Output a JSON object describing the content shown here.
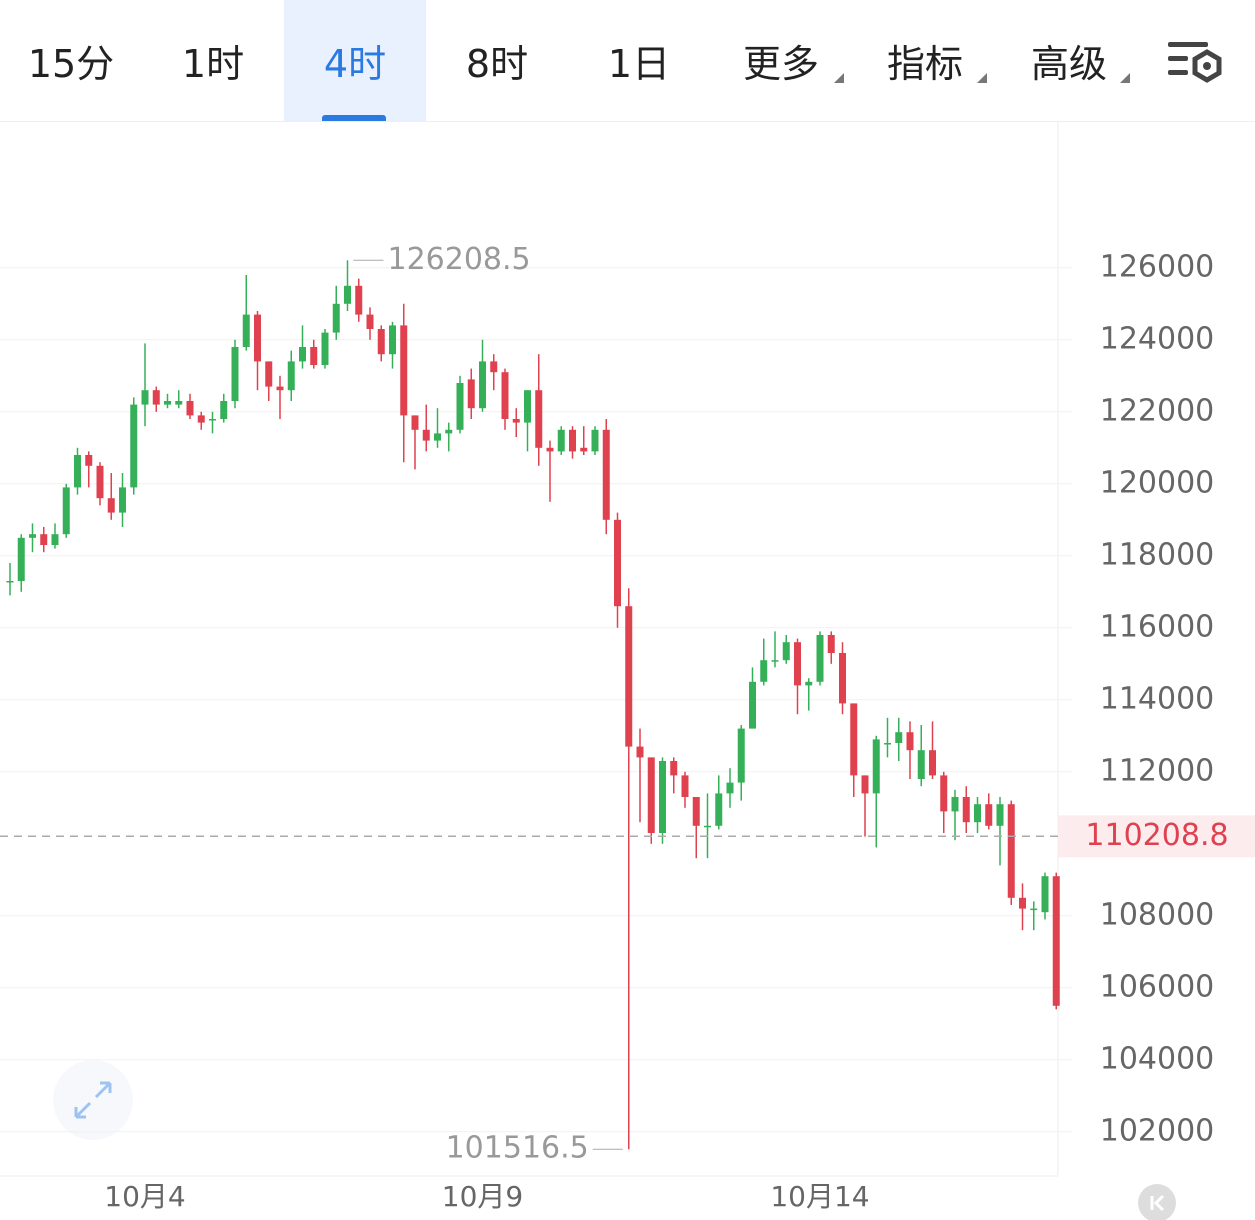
{
  "tabs": [
    "15分",
    "1时",
    "4时",
    "8时",
    "1日",
    "更多",
    "指标",
    "高级"
  ],
  "active_tab": 2,
  "chart_data": {
    "type": "candlestick",
    "categories": [
      null,
      null,
      null,
      null,
      null,
      null,
      null,
      null,
      null,
      null,
      null,
      null,
      "10月4",
      null,
      null,
      null,
      null,
      null,
      null,
      null,
      null,
      null,
      null,
      null,
      null,
      null,
      null,
      null,
      null,
      null,
      null,
      null,
      null,
      null,
      null,
      null,
      null,
      null,
      null,
      null,
      null,
      null,
      "10月9",
      null,
      null,
      null,
      null,
      null,
      null,
      null,
      null,
      null,
      null,
      null,
      null,
      null,
      null,
      null,
      null,
      null,
      null,
      null,
      null,
      null,
      null,
      null,
      null,
      null,
      null,
      null,
      null,
      null,
      "10月14",
      null,
      null,
      null,
      null,
      null,
      null,
      null,
      null,
      null,
      null,
      null,
      null,
      null,
      null,
      null,
      null,
      null,
      null,
      null,
      null,
      null
    ],
    "open": [
      117300,
      117300,
      118500,
      118600,
      118300,
      118600,
      119900,
      120800,
      120500,
      119600,
      119200,
      119900,
      122200,
      122600,
      122200,
      122200,
      122300,
      121900,
      121800,
      121800,
      122300,
      123800,
      124700,
      123400,
      122700,
      122600,
      123400,
      123800,
      123300,
      124200,
      125000,
      125500,
      124700,
      124300,
      123600,
      124400,
      121900,
      121500,
      121200,
      121400,
      121500,
      122900,
      122100,
      123400,
      123100,
      121800,
      121700,
      122600,
      121000,
      120900,
      121500,
      121000,
      120900,
      121500,
      119000,
      116600,
      112700,
      112400,
      110300,
      112300,
      111900,
      111300,
      110500,
      110500,
      111400,
      111700,
      113200,
      114500,
      115100,
      115100,
      115600,
      114400,
      114500,
      115800,
      115300,
      113900,
      111900,
      111400,
      112800,
      112800,
      113100,
      111800,
      112600,
      111900,
      110900,
      111300,
      110600,
      111100,
      110500,
      111100,
      108500,
      108200,
      108100,
      109100
    ],
    "high": [
      117800,
      118600,
      118900,
      118800,
      118900,
      120000,
      121000,
      120900,
      120600,
      120300,
      120300,
      122400,
      123900,
      122700,
      122500,
      122600,
      122500,
      122000,
      122000,
      122500,
      124000,
      125800,
      124800,
      123400,
      123000,
      123700,
      124400,
      124000,
      124300,
      125500,
      126208.5,
      125700,
      124900,
      124400,
      124500,
      125000,
      121900,
      122200,
      122100,
      121700,
      123000,
      123200,
      124000,
      123600,
      123200,
      122100,
      122600,
      123600,
      121200,
      121600,
      121600,
      121600,
      121600,
      121800,
      119200,
      117100,
      113200,
      112400,
      112400,
      112400,
      112000,
      111300,
      111400,
      111900,
      112100,
      113300,
      114900,
      115700,
      115900,
      115800,
      115700,
      114600,
      115900,
      115900,
      115600,
      113900,
      111900,
      113000,
      113500,
      113500,
      113400,
      113300,
      113400,
      112000,
      111500,
      111600,
      111300,
      111400,
      111300,
      111200,
      108900,
      108400,
      109200,
      109200
    ],
    "low": [
      116900,
      117000,
      118100,
      118100,
      118200,
      118500,
      119700,
      119900,
      119400,
      119000,
      118800,
      119700,
      121600,
      122000,
      122100,
      122100,
      121800,
      121500,
      121400,
      121700,
      122100,
      123700,
      122600,
      122300,
      121800,
      122300,
      123200,
      123200,
      123200,
      124000,
      124800,
      124500,
      124000,
      123400,
      123200,
      120600,
      120400,
      120900,
      121000,
      120900,
      121400,
      121800,
      122000,
      122600,
      121500,
      121300,
      120900,
      120500,
      119500,
      120800,
      120700,
      120800,
      120800,
      118600,
      116000,
      101516.5,
      110600,
      110000,
      110000,
      111400,
      111000,
      109600,
      109600,
      110400,
      111000,
      111200,
      113200,
      114400,
      114900,
      115000,
      113600,
      113700,
      114400,
      115000,
      113600,
      111300,
      110200,
      109900,
      112400,
      112300,
      111800,
      111600,
      111800,
      110300,
      110100,
      110300,
      110300,
      110400,
      109400,
      108300,
      107600,
      107600,
      107900,
      105400
    ],
    "close": [
      117300,
      118500,
      118600,
      118300,
      118600,
      119900,
      120800,
      120500,
      119600,
      119200,
      119900,
      122200,
      122600,
      122200,
      122300,
      122300,
      121900,
      121700,
      121800,
      122300,
      123800,
      124700,
      123400,
      122700,
      122600,
      123400,
      123800,
      123300,
      124200,
      125000,
      125500,
      124700,
      124300,
      123600,
      124400,
      121900,
      121500,
      121200,
      121400,
      121500,
      122800,
      122100,
      123400,
      123100,
      121800,
      121700,
      122600,
      121000,
      120900,
      121500,
      120900,
      120900,
      121500,
      119000,
      116600,
      112700,
      112400,
      110300,
      112300,
      111900,
      111300,
      110500,
      110500,
      111400,
      111700,
      113200,
      114500,
      115100,
      115100,
      115600,
      114400,
      114500,
      115800,
      115300,
      113900,
      111900,
      111400,
      112900,
      112800,
      113100,
      112600,
      112600,
      111900,
      110900,
      111300,
      110600,
      111100,
      110500,
      111100,
      108500,
      108200,
      108200,
      109100,
      105500
    ],
    "up_color": "#35b058",
    "down_color": "#e0414f",
    "high_label": 126208.5,
    "low_label": 101516.5,
    "last_price": 110208.8,
    "ylim": [
      100800,
      130050
    ],
    "yticks": [
      102000,
      104000,
      106000,
      108000,
      112000,
      114000,
      116000,
      118000,
      120000,
      122000,
      124000,
      126000
    ],
    "grid": true
  }
}
